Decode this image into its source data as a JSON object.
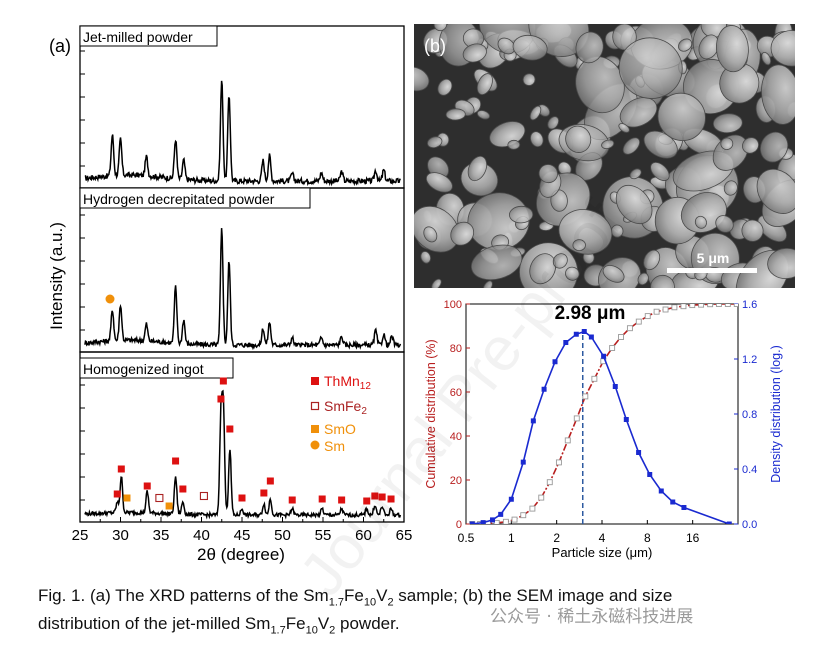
{
  "panel_a": {
    "label": "(a)",
    "y_axis_label": "Intensity (a.u.)",
    "x_axis_label": "2θ (degree)",
    "x_ticks": [
      "25",
      "30",
      "35",
      "40",
      "45",
      "50",
      "55",
      "60",
      "65"
    ],
    "subpanels": [
      {
        "title": "Jet-milled powder"
      },
      {
        "title": "Hydrogen decrepitated powder"
      },
      {
        "title": "Homogenized ingot"
      }
    ],
    "legend": [
      {
        "label_main": "ThMn",
        "label_sub": "12",
        "marker": "filled-square",
        "color": "#dd1111"
      },
      {
        "label_main": "SmFe",
        "label_sub": "2",
        "marker": "open-square",
        "color": "#aa2222"
      },
      {
        "label_main": "SmO",
        "label_sub": "",
        "marker": "filled-square",
        "color": "#f0900a"
      },
      {
        "label_main": "Sm",
        "label_sub": "",
        "marker": "filled-circle",
        "color": "#f0900a"
      }
    ]
  },
  "panel_b": {
    "label": "(b)",
    "scale_bar_label": "5 μm"
  },
  "chart_data": [
    {
      "type": "line",
      "name_ref": "xrd_patterns",
      "xlabel": "2θ (degree)",
      "ylabel": "Intensity (a.u.)",
      "xlim": [
        25,
        65
      ],
      "series": [
        {
          "name": "Jet-milled powder",
          "x": [
            29.0,
            30.0,
            33.2,
            36.8,
            37.8,
            42.5,
            43.4,
            47.6,
            48.4,
            51.2,
            54.8,
            57.3,
            61.5,
            62.5
          ],
          "values": [
            0.34,
            0.3,
            0.16,
            0.33,
            0.16,
            0.84,
            0.72,
            0.17,
            0.21,
            0.06,
            0.07,
            0.08,
            0.09,
            0.09
          ]
        },
        {
          "name": "Hydrogen decrepitated powder",
          "x": [
            29.0,
            30.0,
            33.2,
            36.8,
            37.8,
            42.5,
            43.4,
            47.6,
            48.4,
            51.2,
            54.8,
            57.3,
            61.5,
            62.5,
            63.5
          ],
          "values": [
            0.26,
            0.3,
            0.14,
            0.47,
            0.2,
            0.97,
            0.7,
            0.14,
            0.19,
            0.06,
            0.06,
            0.07,
            0.12,
            0.09,
            0.07
          ]
        },
        {
          "name": "Homogenized ingot",
          "x": [
            29.6,
            30.1,
            33.3,
            36.8,
            37.7,
            42.4,
            42.7,
            43.5,
            45.0,
            47.7,
            48.5,
            51.2,
            54.9,
            57.3,
            60.4,
            61.4,
            62.3,
            63.4
          ],
          "values": [
            0.08,
            0.29,
            0.17,
            0.3,
            0.1,
            0.76,
            0.83,
            0.53,
            0.05,
            0.09,
            0.13,
            0.05,
            0.05,
            0.05,
            0.05,
            0.08,
            0.07,
            0.05
          ]
        }
      ]
    },
    {
      "type": "line",
      "name_ref": "particle_size_distribution",
      "xlabel": "Particle size (μm)",
      "ylabel": "Cumulative distribution (%)",
      "y2label": "Density distribution (log.)",
      "xscale": "log",
      "xlim": [
        0.5,
        32
      ],
      "ylim": [
        0,
        100
      ],
      "y2lim": [
        0,
        1.6
      ],
      "x_ticks": [
        "0.5",
        "1",
        "2",
        "4",
        "8",
        "16"
      ],
      "y_ticks": [
        "0",
        "20",
        "40",
        "60",
        "80",
        "100"
      ],
      "y2_ticks": [
        "0.0",
        "0.4",
        "0.8",
        "1.2",
        "1.6"
      ],
      "annotation": "2.98 μm",
      "annotation_x": 2.98,
      "series": [
        {
          "name": "Cumulative",
          "x": [
            0.55,
            0.62,
            0.7,
            0.8,
            0.92,
            1.05,
            1.2,
            1.38,
            1.58,
            1.8,
            2.07,
            2.37,
            2.72,
            3.1,
            3.56,
            4.08,
            4.67,
            5.35,
            6.13,
            7.02,
            8.05,
            9.22,
            10.57,
            12.1,
            13.9,
            15.9,
            18.2,
            20.9,
            23.9,
            27.4,
            31.4
          ],
          "values": [
            0,
            0,
            0.2,
            0.5,
            1,
            2,
            4,
            7,
            12,
            19,
            28,
            38,
            48,
            58,
            66,
            74,
            80,
            85,
            89,
            92,
            94.5,
            96.5,
            97.5,
            98.5,
            99,
            99.5,
            99.7,
            99.9,
            100,
            100,
            100
          ]
        },
        {
          "name": "Density",
          "x": [
            0.55,
            0.65,
            0.75,
            0.85,
            1.0,
            1.2,
            1.4,
            1.65,
            1.95,
            2.3,
            2.7,
            3.05,
            3.4,
            4.1,
            4.9,
            5.8,
            7.0,
            8.3,
            9.9,
            11.8,
            14.0,
            28.0
          ],
          "values": [
            0,
            0.01,
            0.03,
            0.07,
            0.18,
            0.45,
            0.75,
            0.98,
            1.18,
            1.32,
            1.38,
            1.4,
            1.36,
            1.22,
            1.0,
            0.76,
            0.52,
            0.36,
            0.24,
            0.16,
            0.12,
            0.0
          ]
        }
      ]
    }
  ],
  "caption": {
    "line1": {
      "p1": "Fig. 1. (a) The XRD patterns of the Sm",
      "s1": "1.7",
      "p2": "Fe",
      "s2": "10",
      "p3": "V",
      "s3": "2",
      "p4": " sample; (b) the SEM image and size"
    },
    "line2": {
      "p1": "distribution of the jet-milled Sm",
      "s1": "1.7",
      "p2": "Fe",
      "s2": "10",
      "p3": "V",
      "s3": "2",
      "p4": " powder."
    }
  },
  "watermark": {
    "text": "公众号 · 稀土永磁科技进展"
  },
  "colors": {
    "cumulative": "#b81e1e",
    "density": "#1a2ad0",
    "annotation_line": "#2d5aa0",
    "sem_background": "#2e2e2e"
  }
}
